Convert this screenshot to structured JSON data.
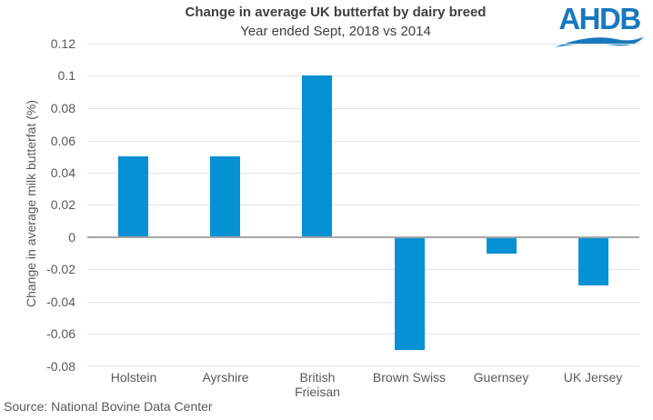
{
  "header": {
    "logo_text": "AHDB"
  },
  "chart_data": {
    "type": "bar",
    "title": "Change in average UK butterfat by dairy breed",
    "subtitle": "Year ended Sept, 2018 vs 2014",
    "categories": [
      "Holstein",
      "Ayrshire",
      "British Frieisan",
      "Brown Swiss",
      "Guernsey",
      "UK Jersey"
    ],
    "values": [
      0.05,
      0.05,
      0.1,
      -0.07,
      -0.01,
      -0.03
    ],
    "xlabel": "",
    "ylabel": "Change in average milk butterfat (%)",
    "ylim": [
      -0.08,
      0.12
    ],
    "ytick_step": 0.02,
    "yticks": [
      {
        "value": 0.12,
        "label": "0.12"
      },
      {
        "value": 0.1,
        "label": "0.1"
      },
      {
        "value": 0.08,
        "label": "0.08"
      },
      {
        "value": 0.06,
        "label": "0.06"
      },
      {
        "value": 0.04,
        "label": "0.04"
      },
      {
        "value": 0.02,
        "label": "0.02"
      },
      {
        "value": 0,
        "label": "0"
      },
      {
        "value": -0.02,
        "label": "-0.02"
      },
      {
        "value": -0.04,
        "label": "-0.04"
      },
      {
        "value": -0.06,
        "label": "-0.06"
      },
      {
        "value": -0.08,
        "label": "-0.08"
      }
    ],
    "grid": true,
    "legend": "none"
  },
  "footer": {
    "source": "Source: National Bovine Data Center"
  },
  "colors": {
    "bar_blue": "#0591d3",
    "logo_blue": "#1878be",
    "grid_gray": "#e3e3e3",
    "axis_gray": "#a6a6a6",
    "title_gray": "#404040",
    "label_gray": "#595959"
  }
}
